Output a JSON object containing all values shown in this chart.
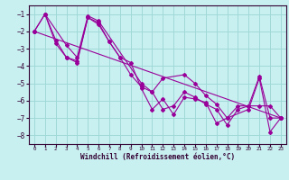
{
  "xlabel": "Windchill (Refroidissement éolien,°C)",
  "background_color": "#c8f0f0",
  "grid_color": "#a0d8d8",
  "line_color": "#990099",
  "spine_color": "#330033",
  "xlim": [
    -0.5,
    23.5
  ],
  "ylim": [
    -8.5,
    -0.5
  ],
  "yticks": [
    -8,
    -7,
    -6,
    -5,
    -4,
    -3,
    -2,
    -1
  ],
  "xticks": [
    0,
    1,
    2,
    3,
    4,
    5,
    6,
    7,
    8,
    9,
    10,
    11,
    12,
    13,
    14,
    15,
    16,
    17,
    18,
    19,
    20,
    21,
    22,
    23
  ],
  "series": [
    {
      "x": [
        0,
        1,
        2,
        3,
        4,
        5,
        6,
        7,
        8,
        9,
        10,
        11,
        12,
        13,
        14,
        15,
        16,
        17,
        18,
        19,
        20,
        21,
        22,
        23
      ],
      "y": [
        -2.0,
        -1.0,
        -2.5,
        -3.5,
        -3.7,
        -1.2,
        -1.5,
        -2.6,
        -3.5,
        -3.8,
        -5.3,
        -6.5,
        -5.9,
        -6.8,
        -5.8,
        -5.9,
        -6.1,
        -7.3,
        -7.0,
        -6.3,
        -6.3,
        -4.6,
        -7.0,
        -7.0
      ]
    },
    {
      "x": [
        0,
        1,
        2,
        3,
        4,
        5,
        6,
        7,
        8,
        9,
        10,
        11,
        12,
        13,
        14,
        15,
        16,
        17,
        18,
        19,
        20,
        21,
        22,
        23
      ],
      "y": [
        -2.0,
        -1.0,
        -2.7,
        -3.5,
        -3.8,
        -1.2,
        -1.6,
        -2.6,
        -3.5,
        -4.5,
        -5.2,
        -5.5,
        -6.5,
        -6.3,
        -5.5,
        -5.8,
        -6.2,
        -6.5,
        -7.4,
        -6.5,
        -6.3,
        -6.3,
        -6.3,
        -7.0
      ]
    },
    {
      "x": [
        1,
        3,
        4,
        5,
        6,
        10,
        11,
        12,
        14,
        15,
        16,
        17,
        18,
        20,
        21,
        22,
        23
      ],
      "y": [
        -1.0,
        -2.8,
        -3.5,
        -1.1,
        -1.4,
        -5.0,
        -5.5,
        -4.7,
        -4.5,
        -5.0,
        -5.7,
        -6.2,
        -7.0,
        -6.5,
        -4.7,
        -7.8,
        -7.0
      ]
    },
    {
      "x": [
        0,
        23
      ],
      "y": [
        -2.0,
        -7.0
      ]
    }
  ]
}
